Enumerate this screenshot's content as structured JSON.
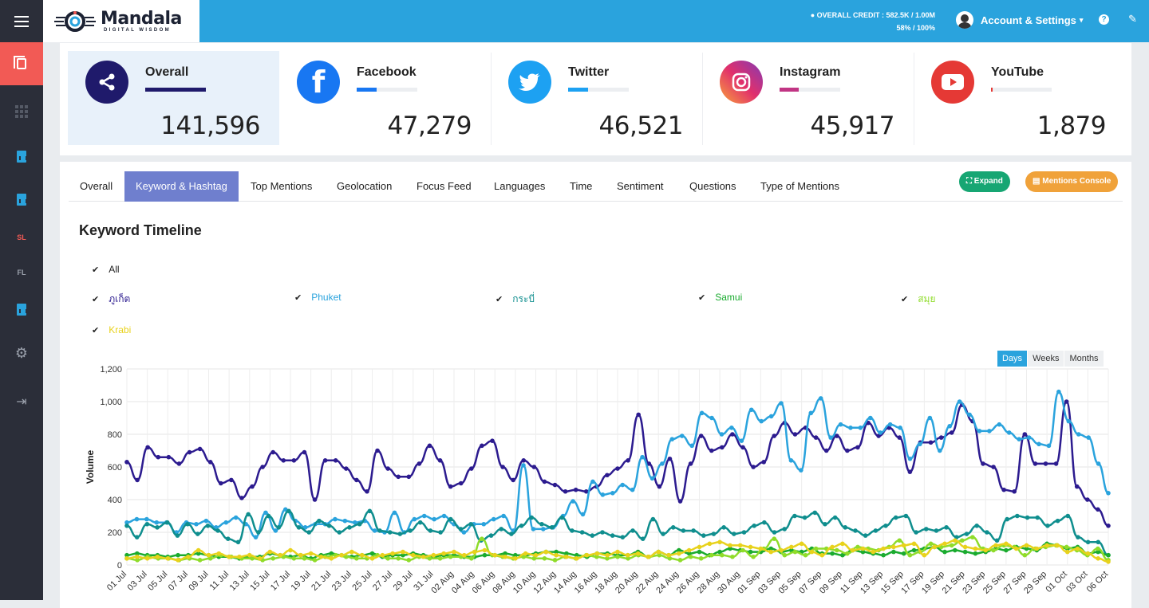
{
  "header": {
    "logo_name": "Mandala",
    "logo_tagline": "DIGITAL WISDOM",
    "credit_line1": "OVERALL CREDIT : 582.5K / 1.00M",
    "credit_line2": "58% / 100%",
    "account_label": "Account & Settings",
    "help_icon": "question-icon",
    "brush_icon": "paintbrush-icon"
  },
  "sidebar": {
    "items": [
      {
        "icon": "copy-icon"
      },
      {
        "icon": "grid-icon"
      },
      {
        "icon": "report-icon"
      },
      {
        "icon": "report-icon"
      },
      {
        "label": "SL"
      },
      {
        "label": "FL"
      },
      {
        "icon": "report-icon"
      },
      {
        "icon": "gear-icon"
      },
      {
        "icon": "sign-out-icon"
      }
    ]
  },
  "stats": [
    {
      "name": "Overall",
      "value": "141,596",
      "share": 1.0,
      "color": "#1f1a6b"
    },
    {
      "name": "Facebook",
      "value": "47,279",
      "share": 0.33,
      "color": "#1877f2"
    },
    {
      "name": "Twitter",
      "value": "46,521",
      "share": 0.33,
      "color": "#1da1f2"
    },
    {
      "name": "Instagram",
      "value": "45,917",
      "share": 0.32,
      "color": "#c13584"
    },
    {
      "name": "YouTube",
      "value": "1,879",
      "share": 0.013,
      "color": "#e53935"
    }
  ],
  "tabs": [
    "Overall",
    "Keyword & Hashtag",
    "Top Mentions",
    "Geolocation",
    "Focus Feed",
    "Languages",
    "Time",
    "Sentiment",
    "Questions",
    "Type of Mentions"
  ],
  "active_tab": "Keyword & Hashtag",
  "buttons": {
    "expand": "Expand",
    "console": "Mentions Console"
  },
  "section_title": "Keyword Timeline",
  "keywords": {
    "all": "All",
    "items": [
      {
        "label": "ภูเก็ต",
        "color": "#2c1b8f"
      },
      {
        "label": "Phuket",
        "color": "#2aa3dd"
      },
      {
        "label": "กระบี่",
        "color": "#0f8e8e"
      },
      {
        "label": "Samui",
        "color": "#1aab2f"
      },
      {
        "label": "สมุย",
        "color": "#8fdc2a"
      },
      {
        "label": "Krabi",
        "color": "#e8d21c"
      }
    ]
  },
  "range": {
    "options": [
      "Days",
      "Weeks",
      "Months"
    ],
    "selected": "Days"
  },
  "chart_data": {
    "type": "line",
    "ylabel": "Volume",
    "ylim": [
      0,
      1200
    ],
    "yticks": [
      "0",
      "200",
      "400",
      "600",
      "800",
      "1,000",
      "1,200"
    ],
    "xticklabels": [
      "01 Jul",
      "03 Jul",
      "05 Jul",
      "07 Jul",
      "09 Jul",
      "11 Jul",
      "13 Jul",
      "15 Jul",
      "17 Jul",
      "19 Jul",
      "21 Jul",
      "23 Jul",
      "25 Jul",
      "27 Jul",
      "29 Jul",
      "31 Jul",
      "02 Aug",
      "04 Aug",
      "06 Aug",
      "08 Aug",
      "10 Aug",
      "12 Aug",
      "14 Aug",
      "16 Aug",
      "18 Aug",
      "20 Aug",
      "22 Aug",
      "24 Aug",
      "26 Aug",
      "28 Aug",
      "30 Aug",
      "01 Sep",
      "03 Sep",
      "05 Sep",
      "07 Sep",
      "09 Sep",
      "11 Sep",
      "13 Sep",
      "15 Sep",
      "17 Sep",
      "19 Sep",
      "21 Sep",
      "23 Sep",
      "25 Sep",
      "27 Sep",
      "29 Sep",
      "01 Oct",
      "03 Oct",
      "06 Oct"
    ],
    "grid": true,
    "series": [
      {
        "name": "ภูเก็ต",
        "color": "#2c1b8f",
        "values": [
          630,
          520,
          720,
          660,
          660,
          620,
          690,
          710,
          630,
          500,
          520,
          410,
          480,
          600,
          690,
          640,
          640,
          690,
          400,
          640,
          640,
          590,
          520,
          450,
          700,
          590,
          540,
          540,
          620,
          730,
          640,
          480,
          500,
          590,
          730,
          760,
          600,
          520,
          640,
          600,
          510,
          490,
          450,
          460,
          450,
          480,
          550,
          590,
          640,
          920,
          620,
          480,
          650,
          390,
          620,
          790,
          700,
          720,
          800,
          720,
          600,
          630,
          790,
          870,
          800,
          840,
          780,
          700,
          790,
          700,
          720,
          870,
          790,
          840,
          780,
          570,
          750,
          750,
          780,
          810,
          980,
          880,
          620,
          600,
          460,
          450,
          800,
          620,
          620,
          620,
          1000,
          480,
          400,
          340,
          240
        ]
      },
      {
        "name": "Phuket",
        "color": "#2aa3dd",
        "values": [
          260,
          280,
          280,
          260,
          260,
          200,
          260,
          250,
          270,
          230,
          260,
          290,
          250,
          170,
          320,
          210,
          340,
          270,
          230,
          250,
          250,
          280,
          270,
          260,
          270,
          210,
          200,
          320,
          200,
          280,
          300,
          280,
          300,
          250,
          200,
          250,
          250,
          280,
          300,
          210,
          610,
          220,
          220,
          230,
          300,
          390,
          310,
          510,
          430,
          440,
          490,
          460,
          660,
          530,
          620,
          770,
          790,
          730,
          930,
          900,
          800,
          840,
          760,
          950,
          880,
          910,
          990,
          640,
          580,
          930,
          1020,
          780,
          860,
          840,
          840,
          900,
          810,
          860,
          840,
          650,
          740,
          900,
          700,
          850,
          1000,
          920,
          820,
          820,
          860,
          810,
          770,
          780,
          740,
          730,
          1060,
          880,
          800,
          780,
          620,
          440
        ]
      },
      {
        "name": "กระบี่",
        "color": "#0f8e8e",
        "values": [
          240,
          170,
          250,
          230,
          260,
          180,
          250,
          190,
          240,
          210,
          160,
          140,
          310,
          200,
          300,
          230,
          330,
          230,
          200,
          270,
          240,
          200,
          230,
          250,
          330,
          210,
          200,
          190,
          210,
          260,
          210,
          200,
          280,
          220,
          250,
          150,
          180,
          220,
          190,
          240,
          290,
          250,
          230,
          290,
          210,
          200,
          180,
          200,
          180,
          170,
          210,
          160,
          280,
          190,
          230,
          210,
          210,
          180,
          190,
          230,
          190,
          200,
          240,
          260,
          200,
          220,
          300,
          290,
          320,
          250,
          290,
          230,
          210,
          180,
          210,
          240,
          290,
          300,
          200,
          220,
          210,
          230,
          170,
          190,
          240,
          200,
          150,
          280,
          300,
          290,
          290,
          240,
          270,
          300,
          170,
          140,
          140,
          60
        ]
      },
      {
        "name": "Samui",
        "color": "#1aab2f",
        "values": [
          60,
          70,
          60,
          60,
          50,
          60,
          60,
          70,
          60,
          50,
          50,
          40,
          50,
          50,
          70,
          60,
          50,
          60,
          40,
          60,
          70,
          60,
          50,
          60,
          70,
          50,
          60,
          60,
          70,
          60,
          50,
          60,
          60,
          50,
          50,
          60,
          60,
          70,
          60,
          60,
          70,
          80,
          80,
          70,
          60,
          50,
          70,
          70,
          60,
          60,
          80,
          50,
          80,
          60,
          90,
          70,
          80,
          60,
          80,
          100,
          90,
          80,
          80,
          100,
          80,
          90,
          80,
          100,
          70,
          70,
          60,
          90,
          80,
          70,
          60,
          80,
          70,
          90,
          100,
          110,
          80,
          90,
          80,
          70,
          80,
          100,
          90,
          110,
          100,
          90,
          130,
          120,
          100,
          110,
          70,
          80,
          60
        ]
      },
      {
        "name": "สมุย",
        "color": "#8fdc2a",
        "values": [
          40,
          30,
          50,
          40,
          40,
          30,
          40,
          30,
          40,
          60,
          50,
          40,
          40,
          30,
          40,
          50,
          40,
          40,
          30,
          50,
          60,
          50,
          40,
          40,
          60,
          40,
          40,
          30,
          50,
          40,
          40,
          50,
          50,
          40,
          160,
          60,
          50,
          40,
          50,
          40,
          40,
          30,
          50,
          40,
          60,
          50,
          40,
          50,
          40,
          60,
          50,
          60,
          40,
          30,
          50,
          40,
          60,
          60,
          50,
          90,
          50,
          100,
          160,
          60,
          80,
          60,
          100,
          100,
          90,
          70,
          110,
          100,
          90,
          110,
          150,
          60,
          80,
          130,
          110,
          120,
          150,
          170,
          100,
          90,
          120,
          110,
          60,
          100,
          110,
          120,
          110,
          90,
          60,
          100,
          30
        ]
      },
      {
        "name": "Krabi",
        "color": "#e8d21c",
        "values": [
          40,
          50,
          40,
          50,
          40,
          30,
          50,
          90,
          60,
          70,
          50,
          50,
          60,
          40,
          80,
          60,
          90,
          60,
          70,
          50,
          40,
          60,
          80,
          60,
          40,
          60,
          70,
          80,
          60,
          50,
          60,
          70,
          80,
          60,
          80,
          90,
          60,
          50,
          40,
          70,
          60,
          80,
          60,
          50,
          40,
          60,
          70,
          60,
          80,
          60,
          70,
          50,
          80,
          60,
          70,
          90,
          110,
          130,
          140,
          120,
          120,
          110,
          100,
          80,
          90,
          110,
          130,
          80,
          60,
          110,
          130,
          90,
          100,
          80,
          100,
          110,
          120,
          130,
          60,
          110,
          130,
          150,
          110,
          100,
          90,
          120,
          130,
          100,
          120,
          100,
          120,
          120,
          80,
          100,
          70,
          40,
          20
        ]
      }
    ]
  }
}
